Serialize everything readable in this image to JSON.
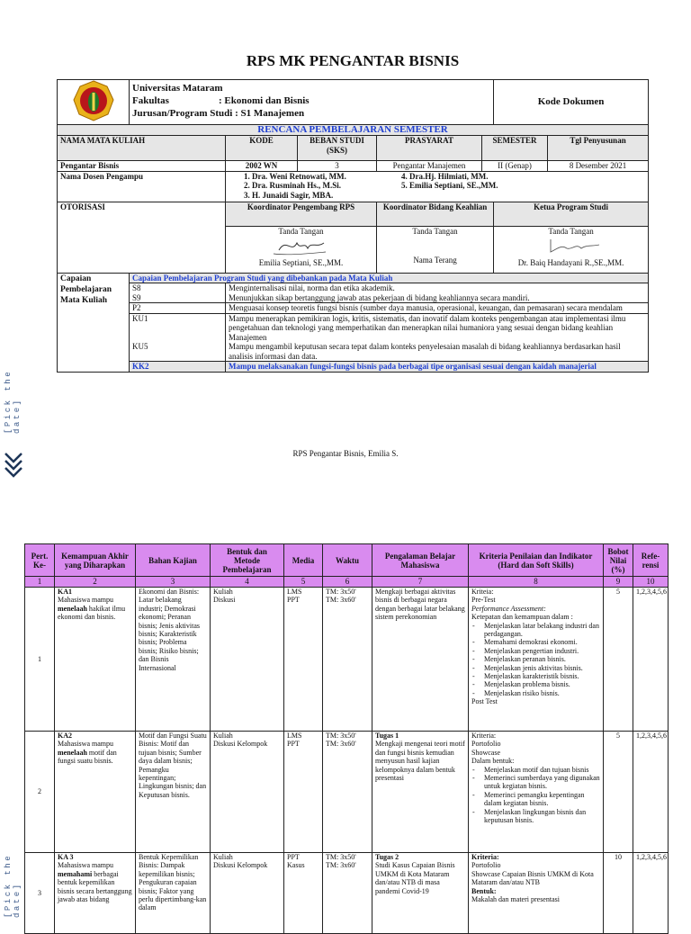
{
  "title": "RPS MK PENGANTAR BISNIS",
  "header": {
    "logo_text": "UNIVERSITAS MATARAM",
    "university": "Universitas Mataram",
    "fakultas_label": "Fakultas",
    "fakultas_value": ": Ekonomi dan Bisnis",
    "jurusan_label": "Jurusan/Program Studi",
    "jurusan_value": ": S1 Manajemen",
    "kode_dokumen": "Kode Dokumen",
    "rps_heading": "RENCANA PEMBELAJARAN SEMESTER",
    "columns": [
      "NAMA MATA KULIAH",
      "KODE",
      "BEBAN STUDI (SKS)",
      "PRASYARAT",
      "SEMESTER",
      "Tgl Penyusunan"
    ],
    "values": [
      "Pengantar Bisnis",
      "2002 WN",
      "3",
      "Pengantar Manajemen",
      "II (Genap)",
      "8 Desember 2021"
    ],
    "dosen_label": "Nama Dosen Pengampu",
    "dosen": [
      "1.   Dra. Weni Retnowati, MM.",
      "2.   Dra. Rusminah Hs., M.Si.",
      "3.   H. Junaidi Sagir, MBA.",
      "4. Dra.Hj. Hilmiati, MM.",
      "5. Emilia Septiani, SE.,MM."
    ],
    "otorisasi_label": "OTORISASI",
    "otorisasi_roles": [
      "Koordinator  Pengembang RPS",
      "Koordinator Bidang Keahlian",
      "Ketua Program Studi"
    ],
    "tanda_tangan": "Tanda Tangan",
    "signers": [
      "Emilia Septiani, SE.,MM.",
      "Nama Terang",
      "Dr. Baiq Handayani R.,SE.,MM."
    ],
    "signature_marks": [
      "Emilia",
      "Baiq"
    ]
  },
  "capaian": {
    "label": "Capaian Pembelajaran Mata Kuliah",
    "heading": "Capaian Pembelajaran Program Studi yang dibebankan pada Mata Kuliah",
    "items": [
      {
        "code": "S8",
        "text": "Menginternalisasi nilai, norma dan etika akademik."
      },
      {
        "code": "S9",
        "text": "Menunjukkan sikap bertanggung jawab atas pekerjaan di bidang keahliannya secara mandiri."
      },
      {
        "code": "P2",
        "text": "Menguasai konsep teoretis fungsi bisnis (sumber daya manusia, operasional, keuangan, dan pemasaran) secara mendalam"
      },
      {
        "code": "KU1",
        "text": "Mampu menerapkan pemikiran logis, kritis, sistematis, dan inovatif dalam konteks pengembangan atau implementasi ilmu pengetahuan dan teknologi yang memperhatikan dan menerapkan nilai humaniora yang sesuai dengan bidang keahlian Manajemen"
      },
      {
        "code": "KU5",
        "text": "Mampu mengambil keputusan secara tepat dalam konteks penyelesaian masalah di bidang keahliannya berdasarkan hasil analisis informasi dan data."
      },
      {
        "code": "KK2",
        "text": "Mampu melaksanakan fungsi-fungsi bisnis pada berbagai tipe organisasi sesuai dengan kaidah manajerial"
      }
    ]
  },
  "footer": "RPS Pengantar Bisnis, Emilia S.",
  "side_label": "[Pick the date]",
  "colors": {
    "header_purple": "#d98bef",
    "accent_blue": "#1f3fd0",
    "side_text": "#3c5a8a"
  },
  "rps_table": {
    "headers": [
      "Pert. Ke-",
      "Kemampuan Akhir yang Diharapkan",
      "Bahan Kajian",
      "Bentuk dan Metode Pembelajaran",
      "Media",
      "Waktu",
      "Pengalaman Belajar Mahasiswa",
      "Kriteria Penilaian dan Indikator (Hard dan Soft Skills)",
      "Bobot Nilai (%)",
      "Refe-rensi"
    ],
    "numbers": [
      "1",
      "2",
      "3",
      "4",
      "5",
      "6",
      "7",
      "8",
      "9",
      "10"
    ],
    "rows": [
      {
        "pert": "1",
        "ka_code": "KA1",
        "ka_pre": "Mahasiswa mampu",
        "ka_verb": "menelaah",
        "ka_post": "hakikat ilmu ekonomi dan bisnis.",
        "bahan": "Ekonomi dan Bisnis: Latar belakang industri; Demokrasi ekonomi; Peranan bisnis; Jenis aktivitas bisnis; Karakteristik bisnis; Problema bisnis; Risiko bisnis; dan Bisnis Internasional",
        "metode": [
          "Kuliah",
          "Diskusi"
        ],
        "media": [
          "LMS",
          "PPT"
        ],
        "waktu": [
          "TM: 3x50'",
          "TM: 3x60'"
        ],
        "tugas": "",
        "pengalaman": "Mengkaji berbagai aktivitas bisnis di berbagai negara dengan berbagai latar belakang sistem perekonomian",
        "kriteria_head": [
          "Kriteia:",
          "Pre-Test"
        ],
        "kriteria_italic": "Performance Assessment:",
        "kriteria_intro": "Ketepatan dan kemampuan dalam :",
        "kriteria_items": [
          "Menjelaskan latar belakang industri dan perdagangan.",
          "Memahami demokrasi ekonomi.",
          "Menjelaskan pengertian industri.",
          "Menjelaskan peranan bisnis.",
          "Menjelaskan jenis aktivitas bisnis.",
          "Menjelaskan karakteristik bisnis.",
          "Menjelaskan problema bisnis.",
          "Menjelaskan risiko bisnis."
        ],
        "kriteria_tail": "Post Test",
        "bobot": "5",
        "referensi": "1,2,3,4,5,6"
      },
      {
        "pert": "2",
        "ka_code": "KA2",
        "ka_pre": "Mahasiswa mampu",
        "ka_verb": "menelaah",
        "ka_post": "motif dan fungsi suatu bisnis.",
        "bahan": "Motif dan Fungsi Suatu Bisnis: Motif dan tujuan bisnis; Sumber daya dalam bisnis; Pemangku kepentingan; Lingkungan bisnis; dan Keputusan bisnis.",
        "metode": [
          "Kuliah",
          "Diskusi Kelompok"
        ],
        "media": [
          "LMS",
          "PPT"
        ],
        "waktu": [
          "TM: 3x50'",
          "TM: 3x60'"
        ],
        "tugas": "Tugas 1",
        "pengalaman": "Mengkaji mengenai teori motif dan fungsi bisnis kemudian menyusun hasil kajian kelompoknya dalam bentuk presentasi",
        "kriteria_head": [
          "Kriteria:",
          "Portofolio",
          "Showcase",
          "Dalam bentuk:"
        ],
        "kriteria_italic": "",
        "kriteria_intro": "",
        "kriteria_items": [
          "Menjelaskan motif dan tujuan bisnis",
          "Memerinci sumberdaya yang digunakan untuk kegiatan bisnis.",
          "Memerinci pemangku kepentingan dalam kegiatan bisnis.",
          "Menjelaskan lingkungan bisnis dan keputusan bisnis."
        ],
        "kriteria_tail": "",
        "bobot": "5",
        "referensi": "1,2,3,4,5,6"
      },
      {
        "pert": "3",
        "ka_code": "KA 3",
        "ka_pre": "Mahasiswa mampu",
        "ka_verb": "memahami",
        "ka_post": "berbagai bentuk kepemilikan bisnis secara bertanggung jawab atas bidang",
        "bahan": "Bentuk Kepemilikan Bisnis: Dampak kepemilikan bisnis; Pengukuran capaian bisnis; Faktor yang perlu dipertimbang-kan dalam",
        "metode": [
          "Kuliah",
          "Diskusi Kelompok"
        ],
        "media": [
          "PPT",
          "Kasus"
        ],
        "waktu": [
          "TM: 3x50'",
          "TM: 3x60'"
        ],
        "tugas": "Tugas 2",
        "pengalaman": "Studi Kasus Capaian Bisnis UMKM di Kota Mataram dan/atau NTB di masa pandemi Covid-19",
        "kriteria_head": [
          "Kriteria:",
          "Portofolio",
          "Showcase Capaian Bisnis UMKM di Kota Mataram dan/atau NTB",
          "Bentuk:",
          "Makalah dan materi presentasi"
        ],
        "kriteria_italic": "",
        "kriteria_intro": "",
        "kriteria_items": [],
        "kriteria_tail": "",
        "bobot": "10",
        "referensi": "1,2,3,4,5,6"
      }
    ]
  }
}
